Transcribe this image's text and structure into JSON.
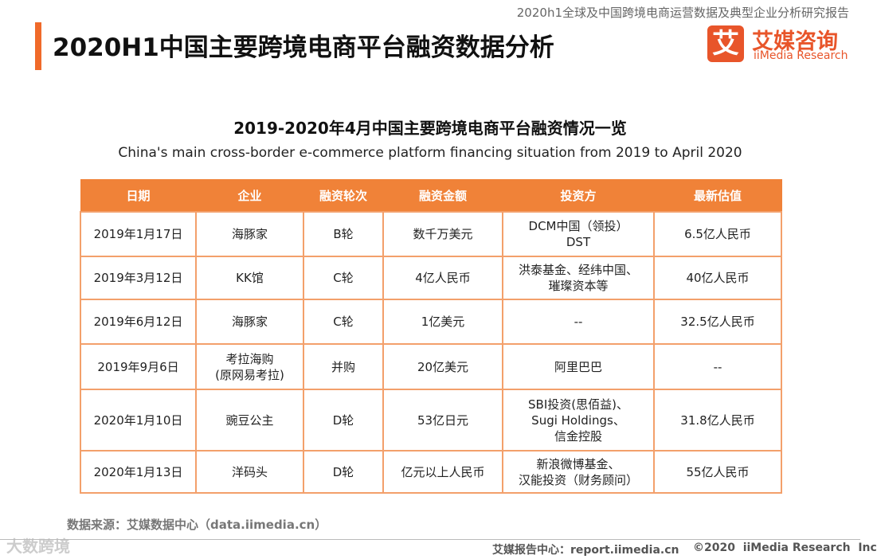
{
  "header": {
    "report_title": "2020h1全球及中国跨境电商运营数据及典型企业分析研究报告",
    "title": "2020H1中国主要跨境电商平台融资数据分析",
    "logo_icon": "艾",
    "logo_name": "艾媒咨询",
    "logo_en": "iiMedia Research"
  },
  "table": {
    "title": "2019-2020年4月中国主要跨境电商平台融资情况一览",
    "subtitle": "China's main cross-border e-commerce platform financing situation from 2019 to April 2020",
    "columns": [
      "日期",
      "企业",
      "融资轮次",
      "融资金额",
      "投资方",
      "最新估值"
    ],
    "rows": [
      [
        "2019年1月17日",
        "海豚家",
        "B轮",
        "数千万美元",
        "DCM中国（领投）\nDST",
        "6.5亿人民币"
      ],
      [
        "2019年3月12日",
        "KK馆",
        "C轮",
        "4亿人民币",
        "洪泰基金、经纬中国、\n璀璨资本等",
        "40亿人民币"
      ],
      [
        "2019年6月12日",
        "海豚家",
        "C轮",
        "1亿美元",
        "--",
        "32.5亿人民币"
      ],
      [
        "2019年9月6日",
        "考拉海购\n(原网易考拉)",
        "并购",
        "20亿美元",
        "阿里巴巴",
        "--"
      ],
      [
        "2020年1月10日",
        "豌豆公主",
        "D轮",
        "53亿日元",
        "SBI投资(思佰益)、\nSugi Holdings、\n信金控股",
        "31.8亿人民币"
      ],
      [
        "2020年1月13日",
        "洋码头",
        "D轮",
        "亿元以上人民币",
        "新浪微博基金、\n汉能投资（财务顾问）",
        "55亿人民币"
      ]
    ]
  },
  "source": "数据来源：艾媒数据中心（data.iimedia.cn）",
  "footer": {
    "site": "艾媒报告中心：report.iimedia.cn",
    "copyright": "©2020  iiMedia Research  Inc",
    "watermark": "大数跨境"
  }
}
